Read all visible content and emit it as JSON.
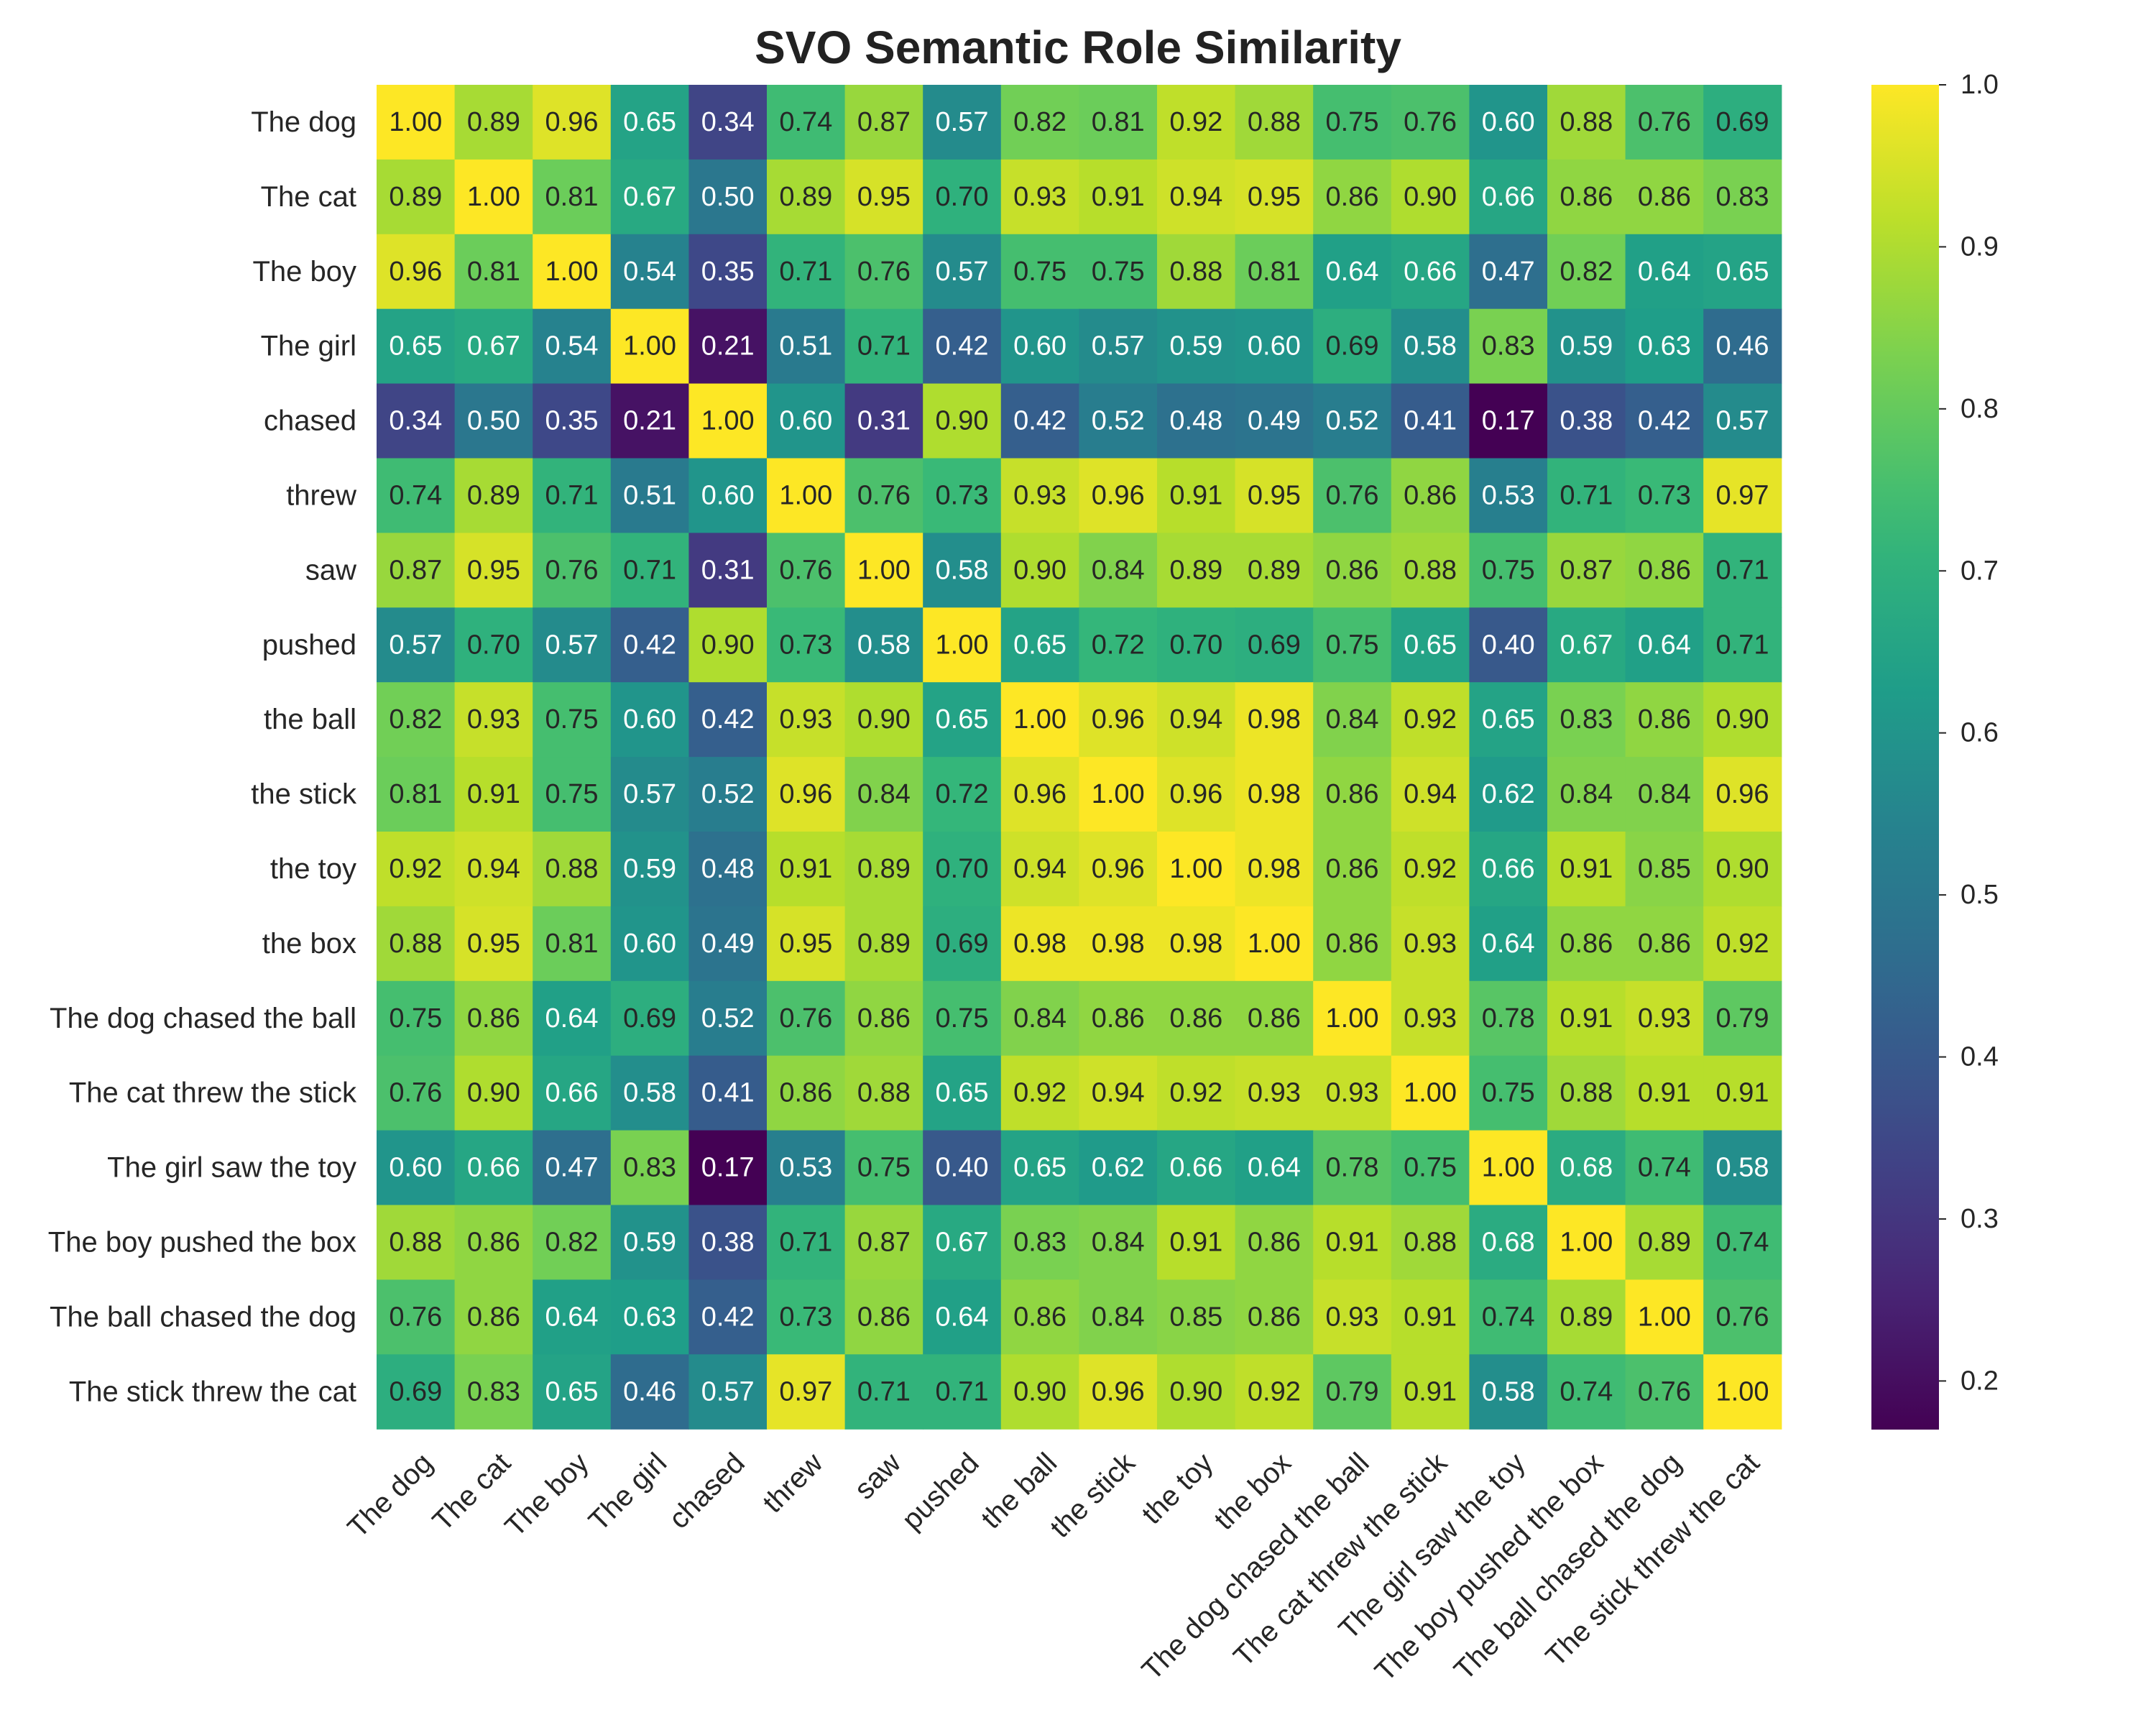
{
  "chart_data": {
    "type": "heatmap",
    "title": "SVO Semantic Role Similarity",
    "row_labels": [
      "The dog",
      "The cat",
      "The boy",
      "The girl",
      "chased",
      "threw",
      "saw",
      "pushed",
      "the ball",
      "the stick",
      "the toy",
      "the box",
      "The dog chased the ball",
      "The cat threw the stick",
      "The girl saw the toy",
      "The boy pushed the box",
      "The ball chased the dog",
      "The stick threw the cat"
    ],
    "col_labels": [
      "The dog",
      "The cat",
      "The boy",
      "The girl",
      "chased",
      "threw",
      "saw",
      "pushed",
      "the ball",
      "the stick",
      "the toy",
      "the box",
      "The dog chased the ball",
      "The cat threw the stick",
      "The girl saw the toy",
      "The boy pushed the box",
      "The ball chased the dog",
      "The stick threw the cat"
    ],
    "values": [
      [
        1.0,
        0.89,
        0.96,
        0.65,
        0.34,
        0.74,
        0.87,
        0.57,
        0.82,
        0.81,
        0.92,
        0.88,
        0.75,
        0.76,
        0.6,
        0.88,
        0.76,
        0.69
      ],
      [
        0.89,
        1.0,
        0.81,
        0.67,
        0.5,
        0.89,
        0.95,
        0.7,
        0.93,
        0.91,
        0.94,
        0.95,
        0.86,
        0.9,
        0.66,
        0.86,
        0.86,
        0.83
      ],
      [
        0.96,
        0.81,
        1.0,
        0.54,
        0.35,
        0.71,
        0.76,
        0.57,
        0.75,
        0.75,
        0.88,
        0.81,
        0.64,
        0.66,
        0.47,
        0.82,
        0.64,
        0.65
      ],
      [
        0.65,
        0.67,
        0.54,
        1.0,
        0.21,
        0.51,
        0.71,
        0.42,
        0.6,
        0.57,
        0.59,
        0.6,
        0.69,
        0.58,
        0.83,
        0.59,
        0.63,
        0.46
      ],
      [
        0.34,
        0.5,
        0.35,
        0.21,
        1.0,
        0.6,
        0.31,
        0.9,
        0.42,
        0.52,
        0.48,
        0.49,
        0.52,
        0.41,
        0.17,
        0.38,
        0.42,
        0.57
      ],
      [
        0.74,
        0.89,
        0.71,
        0.51,
        0.6,
        1.0,
        0.76,
        0.73,
        0.93,
        0.96,
        0.91,
        0.95,
        0.76,
        0.86,
        0.53,
        0.71,
        0.73,
        0.97
      ],
      [
        0.87,
        0.95,
        0.76,
        0.71,
        0.31,
        0.76,
        1.0,
        0.58,
        0.9,
        0.84,
        0.89,
        0.89,
        0.86,
        0.88,
        0.75,
        0.87,
        0.86,
        0.71
      ],
      [
        0.57,
        0.7,
        0.57,
        0.42,
        0.9,
        0.73,
        0.58,
        1.0,
        0.65,
        0.72,
        0.7,
        0.69,
        0.75,
        0.65,
        0.4,
        0.67,
        0.64,
        0.71
      ],
      [
        0.82,
        0.93,
        0.75,
        0.6,
        0.42,
        0.93,
        0.9,
        0.65,
        1.0,
        0.96,
        0.94,
        0.98,
        0.84,
        0.92,
        0.65,
        0.83,
        0.86,
        0.9
      ],
      [
        0.81,
        0.91,
        0.75,
        0.57,
        0.52,
        0.96,
        0.84,
        0.72,
        0.96,
        1.0,
        0.96,
        0.98,
        0.86,
        0.94,
        0.62,
        0.84,
        0.84,
        0.96
      ],
      [
        0.92,
        0.94,
        0.88,
        0.59,
        0.48,
        0.91,
        0.89,
        0.7,
        0.94,
        0.96,
        1.0,
        0.98,
        0.86,
        0.92,
        0.66,
        0.91,
        0.85,
        0.9
      ],
      [
        0.88,
        0.95,
        0.81,
        0.6,
        0.49,
        0.95,
        0.89,
        0.69,
        0.98,
        0.98,
        0.98,
        1.0,
        0.86,
        0.93,
        0.64,
        0.86,
        0.86,
        0.92
      ],
      [
        0.75,
        0.86,
        0.64,
        0.69,
        0.52,
        0.76,
        0.86,
        0.75,
        0.84,
        0.86,
        0.86,
        0.86,
        1.0,
        0.93,
        0.78,
        0.91,
        0.93,
        0.79
      ],
      [
        0.76,
        0.9,
        0.66,
        0.58,
        0.41,
        0.86,
        0.88,
        0.65,
        0.92,
        0.94,
        0.92,
        0.93,
        0.93,
        1.0,
        0.75,
        0.88,
        0.91,
        0.91
      ],
      [
        0.6,
        0.66,
        0.47,
        0.83,
        0.17,
        0.53,
        0.75,
        0.4,
        0.65,
        0.62,
        0.66,
        0.64,
        0.78,
        0.75,
        1.0,
        0.68,
        0.74,
        0.58
      ],
      [
        0.88,
        0.86,
        0.82,
        0.59,
        0.38,
        0.71,
        0.87,
        0.67,
        0.83,
        0.84,
        0.91,
        0.86,
        0.91,
        0.88,
        0.68,
        1.0,
        0.89,
        0.74
      ],
      [
        0.76,
        0.86,
        0.64,
        0.63,
        0.42,
        0.73,
        0.86,
        0.64,
        0.86,
        0.84,
        0.85,
        0.86,
        0.93,
        0.91,
        0.74,
        0.89,
        1.0,
        0.76
      ],
      [
        0.69,
        0.83,
        0.65,
        0.46,
        0.57,
        0.97,
        0.71,
        0.71,
        0.9,
        0.96,
        0.9,
        0.92,
        0.79,
        0.91,
        0.58,
        0.74,
        0.76,
        1.0
      ]
    ],
    "value_format": "0.00",
    "colormap": "viridis",
    "vmin": 0.17,
    "vmax": 1.0,
    "colorbar_ticks": [
      1.0,
      0.9,
      0.8,
      0.7,
      0.6,
      0.5,
      0.4,
      0.3,
      0.2
    ],
    "colorbar_tick_labels": [
      "1.0",
      "0.9",
      "0.8",
      "0.7",
      "0.6",
      "0.5",
      "0.4",
      "0.3",
      "0.2"
    ],
    "colorbar_placement": "right",
    "x_tick_rotation_deg": -45,
    "text_colors": {
      "light": "#ffffff",
      "dark": "#262626"
    },
    "grid": false
  }
}
